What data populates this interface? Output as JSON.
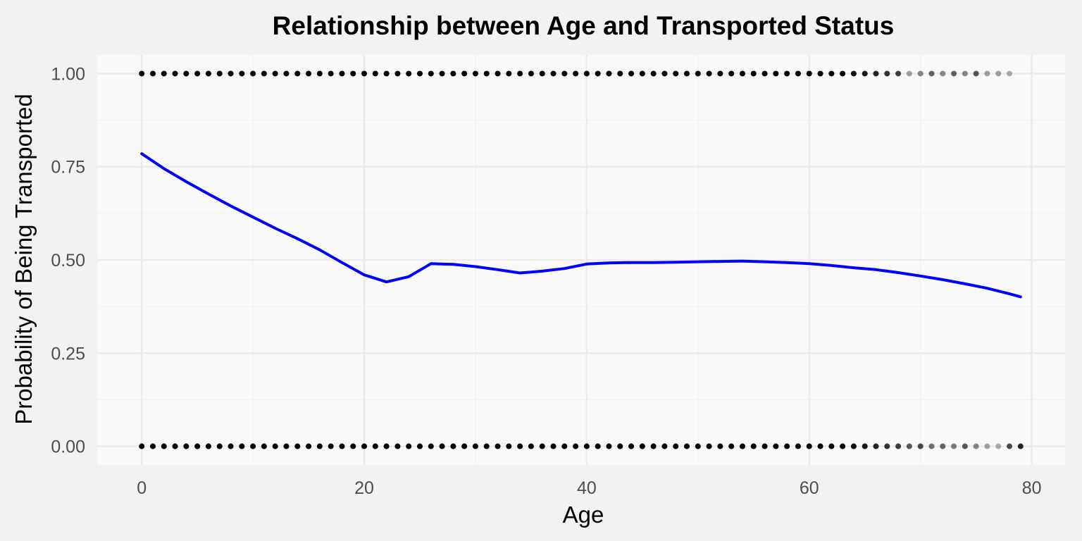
{
  "chart_data": {
    "type": "scatter",
    "title": "Relationship between Age and Transported Status",
    "xlabel": "Age",
    "ylabel": "Probability of Being Transported",
    "xlim": [
      -4,
      83
    ],
    "ylim": [
      -0.05,
      1.05
    ],
    "x_ticks": [
      0,
      20,
      40,
      60,
      80
    ],
    "x_tick_labels": [
      "0",
      "20",
      "40",
      "60",
      "80"
    ],
    "y_ticks": [
      0,
      0.25,
      0.5,
      0.75,
      1
    ],
    "y_tick_labels": [
      "0.00",
      "0.25",
      "0.50",
      "0.75",
      "1.00"
    ],
    "grid": true,
    "legend": "none",
    "colors": {
      "panel": "#f9f9f9",
      "background": "#f2f2f2",
      "grid_major": "#ebebeb",
      "grid_minor": "#f2f2f2",
      "points": "#000000",
      "smooth": "#0000ff"
    },
    "point_series": [
      {
        "y": 1,
        "x": [
          0,
          1,
          2,
          3,
          4,
          5,
          6,
          7,
          8,
          9,
          10,
          11,
          12,
          13,
          14,
          15,
          16,
          17,
          18,
          19,
          20,
          21,
          22,
          23,
          24,
          25,
          26,
          27,
          28,
          29,
          30,
          31,
          32,
          33,
          34,
          35,
          36,
          37,
          38,
          39,
          40,
          41,
          42,
          43,
          44,
          45,
          46,
          47,
          48,
          49,
          50,
          51,
          52,
          53,
          54,
          55,
          56,
          57,
          58,
          59,
          60,
          61,
          62,
          63,
          64,
          65,
          66,
          67,
          68,
          69,
          70,
          71,
          72,
          73,
          74,
          75,
          76,
          77,
          78
        ],
        "opacity": [
          1,
          1,
          1,
          1,
          1,
          1,
          1,
          1,
          1,
          1,
          1,
          1,
          1,
          1,
          1,
          1,
          1,
          1,
          1,
          1,
          1,
          1,
          1,
          1,
          1,
          1,
          1,
          1,
          1,
          1,
          1,
          1,
          1,
          1,
          1,
          1,
          1,
          1,
          1,
          1,
          1,
          1,
          1,
          1,
          1,
          1,
          1,
          1,
          1,
          1,
          1,
          1,
          1,
          1,
          1,
          1,
          1,
          1,
          1,
          1,
          1,
          1,
          1,
          1,
          0.95,
          0.9,
          0.85,
          0.8,
          0.75,
          0.35,
          0.45,
          0.6,
          0.45,
          0.6,
          0.45,
          0.65,
          0.35,
          0.35,
          0.3
        ]
      },
      {
        "y": 0,
        "x": [
          0,
          1,
          2,
          3,
          4,
          5,
          6,
          7,
          8,
          9,
          10,
          11,
          12,
          13,
          14,
          15,
          16,
          17,
          18,
          19,
          20,
          21,
          22,
          23,
          24,
          25,
          26,
          27,
          28,
          29,
          30,
          31,
          32,
          33,
          34,
          35,
          36,
          37,
          38,
          39,
          40,
          41,
          42,
          43,
          44,
          45,
          46,
          47,
          48,
          49,
          50,
          51,
          52,
          53,
          54,
          55,
          56,
          57,
          58,
          59,
          60,
          61,
          62,
          63,
          64,
          65,
          66,
          67,
          68,
          69,
          70,
          71,
          72,
          73,
          74,
          75,
          76,
          77,
          78,
          79
        ],
        "opacity": [
          1,
          1,
          1,
          1,
          1,
          1,
          1,
          1,
          1,
          1,
          1,
          1,
          1,
          1,
          1,
          1,
          1,
          1,
          1,
          1,
          1,
          1,
          1,
          1,
          1,
          1,
          1,
          1,
          1,
          1,
          1,
          1,
          1,
          1,
          1,
          1,
          1,
          1,
          1,
          1,
          1,
          1,
          1,
          1,
          1,
          1,
          1,
          1,
          1,
          1,
          1,
          1,
          1,
          1,
          1,
          1,
          1,
          1,
          1,
          1,
          1,
          1,
          1,
          1,
          0.95,
          0.9,
          0.85,
          0.8,
          0.75,
          0.65,
          0.7,
          0.55,
          0.6,
          0.5,
          0.65,
          0.45,
          0.35,
          0.3,
          0.7,
          0.85
        ]
      }
    ],
    "smooth_line": {
      "x": [
        0,
        2,
        4,
        6,
        8,
        10,
        12,
        14,
        16,
        18,
        20,
        22,
        24,
        26,
        28,
        30,
        32,
        34,
        36,
        38,
        40,
        42,
        44,
        46,
        48,
        50,
        52,
        54,
        56,
        58,
        60,
        62,
        64,
        66,
        68,
        70,
        72,
        74,
        76,
        78,
        79
      ],
      "y": [
        0.785,
        0.745,
        0.71,
        0.677,
        0.645,
        0.615,
        0.585,
        0.557,
        0.527,
        0.493,
        0.46,
        0.441,
        0.455,
        0.49,
        0.488,
        0.482,
        0.474,
        0.465,
        0.47,
        0.477,
        0.489,
        0.492,
        0.493,
        0.493,
        0.494,
        0.495,
        0.496,
        0.497,
        0.495,
        0.493,
        0.49,
        0.485,
        0.479,
        0.474,
        0.466,
        0.457,
        0.447,
        0.436,
        0.424,
        0.409,
        0.401
      ]
    }
  }
}
